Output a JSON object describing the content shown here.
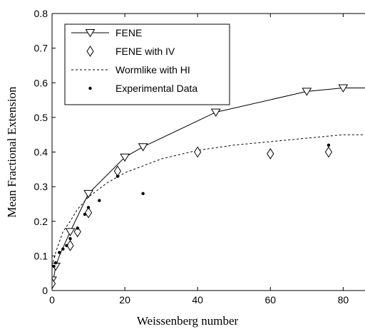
{
  "chart_data": {
    "type": "line",
    "title": "",
    "xlabel": "Weissenberg number",
    "ylabel": "Mean Fractional Extension",
    "xlim": [
      0,
      86
    ],
    "ylim": [
      0,
      0.8
    ],
    "x_ticks": [
      "0",
      "20",
      "40",
      "60",
      "80"
    ],
    "y_ticks": [
      "0",
      "0.1",
      "0.2",
      "0.3",
      "0.4",
      "0.5",
      "0.6",
      "0.7",
      "0.8"
    ],
    "legend_position": "top-left",
    "grid": false,
    "series": [
      {
        "name": "FENE",
        "style": "solid line with down-triangle markers",
        "color": "#000000",
        "x": [
          0,
          0.5,
          1,
          2,
          5,
          10,
          20,
          25,
          45,
          70,
          80,
          86
        ],
        "y": [
          0.03,
          0.04,
          0.07,
          0.1,
          0.17,
          0.28,
          0.385,
          0.415,
          0.515,
          0.575,
          0.585,
          0.585
        ]
      },
      {
        "name": "FENE with IV",
        "style": "diamond markers",
        "color": "#000000",
        "x": [
          0,
          5,
          7,
          10,
          18,
          40,
          60,
          76
        ],
        "y": [
          0.02,
          0.13,
          0.17,
          0.225,
          0.345,
          0.4,
          0.395,
          0.4
        ]
      },
      {
        "name": "Wormlike with HI",
        "style": "dashed line",
        "color": "#000000",
        "x": [
          0,
          1,
          2,
          3,
          5,
          7,
          10,
          15,
          20,
          25,
          30,
          40,
          50,
          60,
          70,
          80,
          86
        ],
        "y": [
          0.07,
          0.11,
          0.14,
          0.17,
          0.2,
          0.235,
          0.27,
          0.31,
          0.34,
          0.36,
          0.38,
          0.405,
          0.42,
          0.43,
          0.44,
          0.45,
          0.45
        ]
      },
      {
        "name": "Experimental Data",
        "style": "filled dot markers",
        "color": "#000000",
        "x": [
          0.5,
          1,
          2,
          3,
          4,
          5,
          7,
          9,
          10,
          13,
          18,
          25,
          76
        ],
        "y": [
          0.07,
          0.08,
          0.11,
          0.12,
          0.13,
          0.15,
          0.18,
          0.22,
          0.24,
          0.26,
          0.33,
          0.28,
          0.42
        ]
      }
    ]
  }
}
